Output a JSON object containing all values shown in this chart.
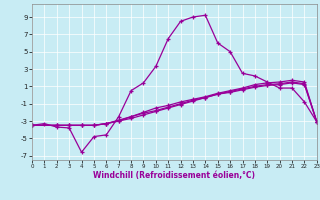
{
  "xlabel": "Windchill (Refroidissement éolien,°C)",
  "bg_color": "#c8ecf4",
  "line_color": "#990099",
  "grid_color": "#ffffff",
  "xlim": [
    0,
    23
  ],
  "ylim": [
    -7.5,
    10.5
  ],
  "xticks": [
    0,
    1,
    2,
    3,
    4,
    5,
    6,
    7,
    8,
    9,
    10,
    11,
    12,
    13,
    14,
    15,
    16,
    17,
    18,
    19,
    20,
    21,
    22,
    23
  ],
  "yticks": [
    -7,
    -5,
    -3,
    -1,
    1,
    3,
    5,
    7,
    9
  ],
  "line1": {
    "x": [
      0,
      1,
      2,
      3,
      4,
      5,
      6,
      7,
      8,
      9,
      10,
      11,
      12,
      13,
      14,
      15,
      16,
      17,
      18,
      19,
      20,
      21,
      22,
      23
    ],
    "y": [
      -3.5,
      -3.3,
      -3.7,
      -3.8,
      -6.6,
      -4.8,
      -4.6,
      -2.5,
      0.5,
      1.4,
      3.3,
      6.5,
      8.5,
      9.0,
      9.2,
      6.0,
      5.0,
      2.5,
      2.2,
      1.5,
      0.8,
      0.8,
      -0.8,
      -3.1
    ]
  },
  "line2": {
    "x": [
      0,
      2,
      3,
      4,
      5,
      6,
      7,
      8,
      9,
      10,
      11,
      12,
      13,
      14,
      15,
      16,
      17,
      18,
      19,
      20,
      21,
      22,
      23
    ],
    "y": [
      -3.5,
      -3.5,
      -3.5,
      -3.5,
      -3.5,
      -3.3,
      -3.0,
      -2.5,
      -2.0,
      -1.5,
      -1.2,
      -0.8,
      -0.5,
      -0.2,
      0.2,
      0.5,
      0.8,
      1.2,
      1.4,
      1.5,
      1.7,
      1.5,
      -3.1
    ]
  },
  "line3": {
    "x": [
      0,
      2,
      3,
      4,
      5,
      6,
      7,
      8,
      9,
      10,
      11,
      12,
      13,
      14,
      15,
      16,
      17,
      18,
      19,
      20,
      21,
      22,
      23
    ],
    "y": [
      -3.5,
      -3.5,
      -3.5,
      -3.5,
      -3.5,
      -3.3,
      -3.0,
      -2.7,
      -2.3,
      -1.9,
      -1.5,
      -1.1,
      -0.7,
      -0.3,
      0.1,
      0.4,
      0.7,
      1.0,
      1.2,
      1.3,
      1.5,
      1.3,
      -3.1
    ]
  },
  "line4": {
    "x": [
      0,
      2,
      3,
      4,
      5,
      6,
      7,
      8,
      9,
      10,
      11,
      12,
      13,
      14,
      15,
      16,
      17,
      18,
      19,
      20,
      21,
      22,
      23
    ],
    "y": [
      -3.5,
      -3.5,
      -3.5,
      -3.5,
      -3.5,
      -3.3,
      -2.9,
      -2.5,
      -2.1,
      -1.8,
      -1.4,
      -1.0,
      -0.6,
      -0.3,
      0.1,
      0.3,
      0.6,
      0.9,
      1.1,
      1.2,
      1.4,
      1.2,
      -3.1
    ]
  }
}
